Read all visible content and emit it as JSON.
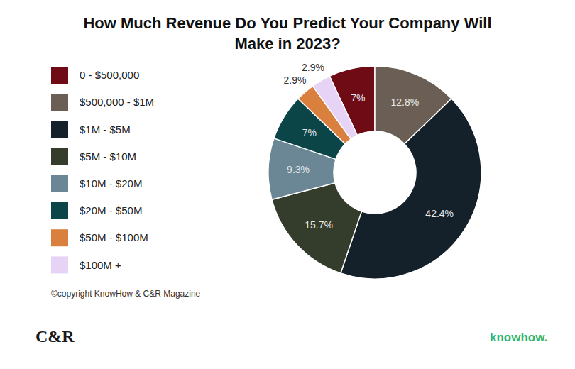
{
  "chart_data": {
    "type": "pie",
    "title": "How Much Revenue Do You Predict Your Company Will Make in 2023?",
    "categories": [
      "0 - $500,000",
      "$500,000 - $1M",
      "$1M - $5M",
      "$5M - $10M",
      "$10M - $20M",
      "$20M - $50M",
      "$50M - $100M",
      "$100M +"
    ],
    "values": [
      7,
      12.8,
      42.4,
      15.7,
      9.3,
      7,
      2.9,
      2.9
    ],
    "value_labels": [
      "7%",
      "12.8%",
      "42.4%",
      "15.7%",
      "9.3%",
      "7%",
      "2.9%",
      "2.9%"
    ],
    "colors": [
      "#6e0b14",
      "#6b5f55",
      "#14202a",
      "#343d2b",
      "#6b8694",
      "#0c4548",
      "#d9803f",
      "#e7d3f6"
    ],
    "data_labels": true,
    "legend": "left",
    "annotations": [
      "©copyright KnowHow & C&R Magazine",
      "C&R",
      "knowhow."
    ]
  }
}
